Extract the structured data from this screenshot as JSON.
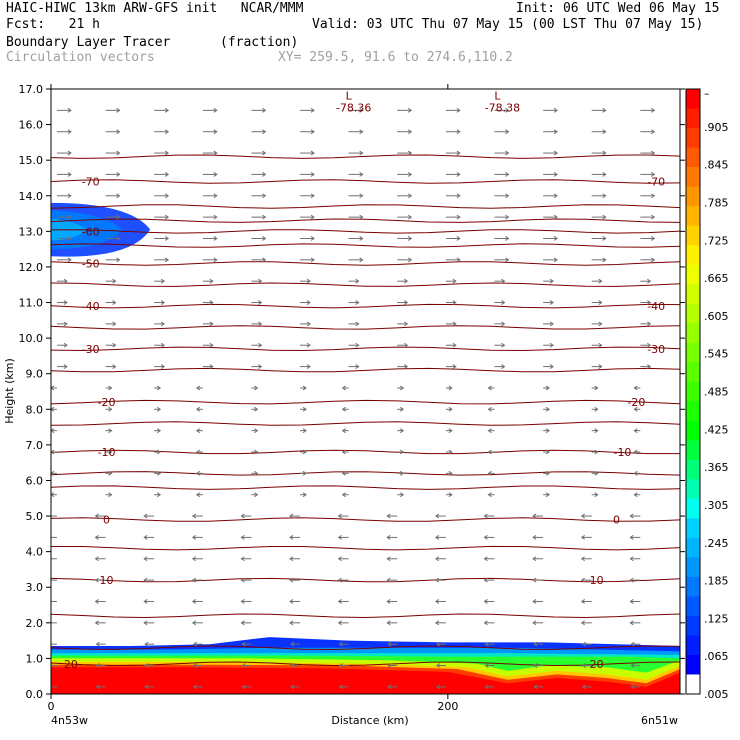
{
  "header": {
    "title_left": "HAIC-HIWC 13km ARW-GFS init   NCAR/MMM",
    "init": "Init: 06 UTC Wed 06 May 15",
    "fcst": "Fcst:   21 h",
    "valid": "Valid: 03 UTC Thu 07 May 15 (00 LST Thu 07 May 15)",
    "field": "Boundary Layer Tracer",
    "units": "(fraction)",
    "vectors": "Circulation vectors",
    "xy": "XY= 259.5, 91.6 to 274.6,110.2"
  },
  "chart_data": {
    "type": "cross-section",
    "xlabel": "Distance (km)",
    "ylabel": "Height (km)",
    "ylim": [
      0,
      17
    ],
    "xlim": [
      0,
      317
    ],
    "y_ticks": [
      "0.0",
      "1.0",
      "2.0",
      "3.0",
      "4.0",
      "5.0",
      "6.0",
      "7.0",
      "8.0",
      "9.0",
      "10.0",
      "11.0",
      "12.0",
      "13.0",
      "14.0",
      "15.0",
      "16.0",
      "17.0"
    ],
    "x_ticks": [
      {
        "value": 0,
        "label": "0"
      },
      {
        "value": 200,
        "label": "200"
      }
    ],
    "x_end_labels": {
      "left": "4n53w",
      "right": "6n51w"
    },
    "colorbar": {
      "labels": [
        "–",
        ".905",
        ".845",
        ".785",
        ".725",
        ".665",
        ".605",
        ".545",
        ".485",
        ".425",
        ".365",
        ".305",
        ".245",
        ".185",
        ".125",
        ".065",
        ".005"
      ],
      "colors": [
        "#ff0000",
        "#ff1e00",
        "#ff3c00",
        "#ff5a00",
        "#ff7800",
        "#ff9600",
        "#ffb400",
        "#ffd200",
        "#fff000",
        "#f0ff00",
        "#d2ff00",
        "#b4ff00",
        "#96ff00",
        "#78ff00",
        "#5aff00",
        "#3cff00",
        "#1eff00",
        "#00ff00",
        "#00ff3c",
        "#00ff78",
        "#00ffb4",
        "#00fff0",
        "#00d2ff",
        "#00b4ff",
        "#0096ff",
        "#0078ff",
        "#005aff",
        "#003cff",
        "#001eff",
        "#0000ff",
        "#ffffff"
      ]
    },
    "temperature_contours": [
      {
        "label": "-70",
        "height": 14.4,
        "label_x": [
          20,
          305
        ]
      },
      {
        "label": "-60",
        "height": 13.0,
        "label_x": [
          20
        ]
      },
      {
        "label": "-50",
        "height": 12.1,
        "label_x": [
          20
        ]
      },
      {
        "label": "-40",
        "height": 10.9,
        "label_x": [
          20,
          305
        ]
      },
      {
        "label": "-30",
        "height": 9.7,
        "label_x": [
          20,
          305
        ]
      },
      {
        "label": "-20",
        "height": 8.2,
        "label_x": [
          28,
          295
        ]
      },
      {
        "label": "-10",
        "height": 6.8,
        "label_x": [
          28,
          288
        ]
      },
      {
        "label": "0",
        "height": 4.9,
        "label_x": [
          28,
          285
        ]
      },
      {
        "label": "10",
        "height": 3.2,
        "label_x": [
          28,
          275
        ]
      },
      {
        "label": "20",
        "height": 0.85,
        "label_x": [
          10,
          275
        ]
      }
    ],
    "minima": [
      {
        "label": "L",
        "value": "-78.36",
        "x": 150,
        "y": 16.7
      },
      {
        "label": "L",
        "value": "-78.38",
        "x": 225,
        "y": 16.7
      }
    ]
  }
}
